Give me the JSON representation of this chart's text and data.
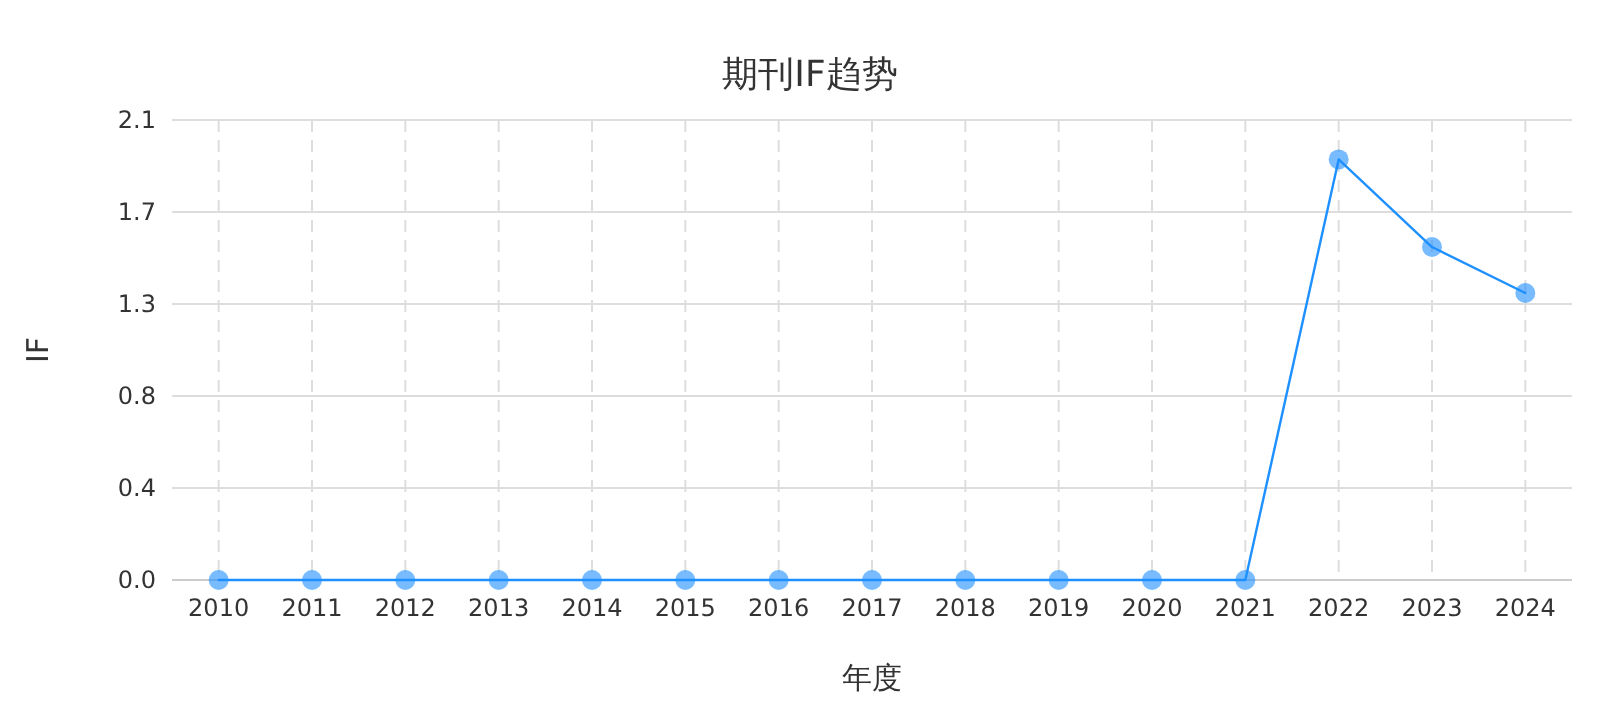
{
  "chart_data": {
    "type": "line",
    "title": "期刊IF趋势",
    "xlabel": "年度",
    "ylabel": "IF",
    "categories": [
      "2010",
      "2011",
      "2012",
      "2013",
      "2014",
      "2015",
      "2016",
      "2017",
      "2018",
      "2019",
      "2020",
      "2021",
      "2022",
      "2023",
      "2024"
    ],
    "series": [
      {
        "color": "#1e90ff",
        "values": [
          0,
          0,
          0,
          0,
          0,
          0,
          0,
          0,
          0,
          0,
          0,
          0,
          1.92,
          1.52,
          1.31
        ]
      }
    ],
    "ylim": [
      0,
      2.1
    ],
    "yticks": [
      {
        "value": 0,
        "label": "0.0"
      },
      {
        "value": 0.42,
        "label": "0.4"
      },
      {
        "value": 0.84,
        "label": "0.8"
      },
      {
        "value": 1.26,
        "label": "1.3"
      },
      {
        "value": 1.68,
        "label": "1.7"
      },
      {
        "value": 2.1,
        "label": "2.1"
      }
    ],
    "grid": true,
    "marker": "circle"
  }
}
